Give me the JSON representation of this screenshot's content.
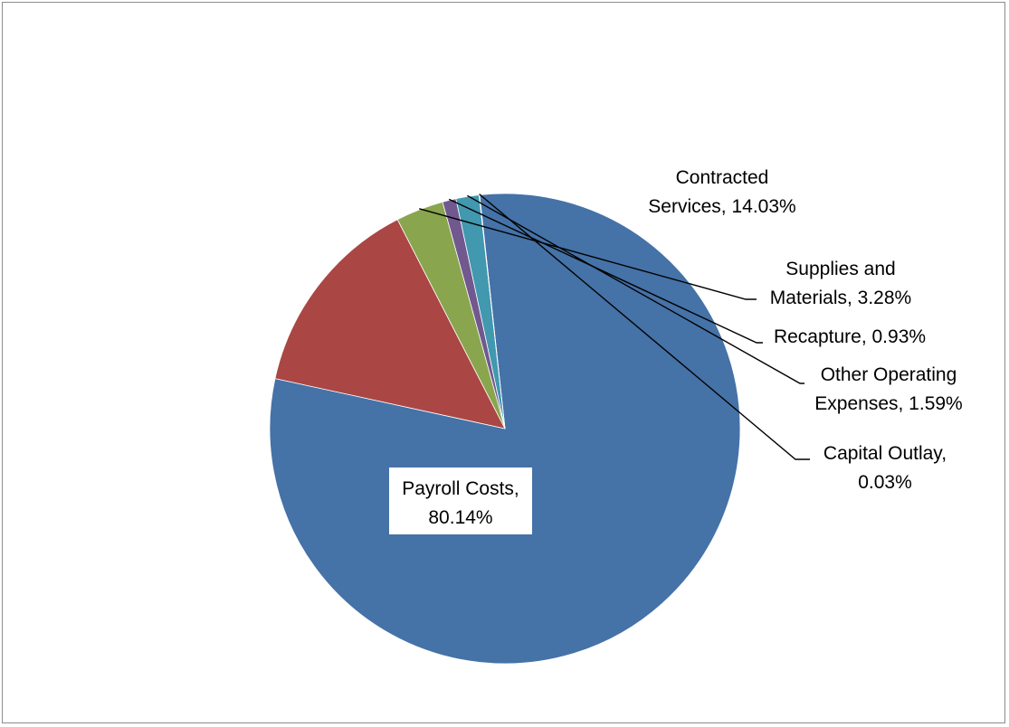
{
  "chart_data": {
    "type": "pie",
    "slices": [
      {
        "label_lines": [
          "Payroll Costs,",
          "80.14%"
        ],
        "category": "Payroll Costs",
        "value": 80.14,
        "color": "#4572A7"
      },
      {
        "label_lines": [
          "Contracted",
          "Services, 14.03%"
        ],
        "category": "Contracted Services",
        "value": 14.03,
        "color": "#AA4643"
      },
      {
        "label_lines": [
          "Supplies and",
          "Materials, 3.28%"
        ],
        "category": "Supplies and Materials",
        "value": 3.28,
        "color": "#89A54E"
      },
      {
        "label_lines": [
          "Recapture, 0.93%"
        ],
        "category": "Recapture",
        "value": 0.93,
        "color": "#71588F"
      },
      {
        "label_lines": [
          "Other Operating",
          "Expenses, 1.59%"
        ],
        "category": "Other Operating Expenses",
        "value": 1.59,
        "color": "#4198AF"
      },
      {
        "label_lines": [
          "Capital Outlay,",
          "0.03%"
        ],
        "category": "Capital Outlay",
        "value": 0.03,
        "color": "#DB843D"
      }
    ],
    "legend": "none",
    "data_labels": "category and percentage"
  }
}
